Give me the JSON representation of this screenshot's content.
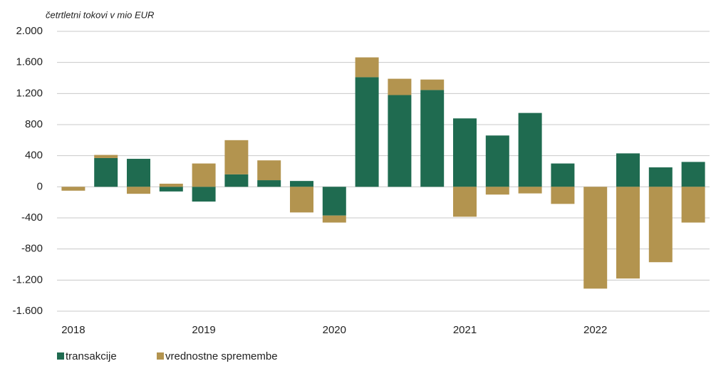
{
  "chart_data": {
    "type": "stacked_bar",
    "subtitle": "četrtletni tokovi v mio EUR",
    "categories": [
      "2018",
      null,
      null,
      null,
      "2019",
      null,
      null,
      null,
      "2020",
      null,
      null,
      null,
      "2021",
      null,
      null,
      null,
      "2022",
      null,
      null,
      null
    ],
    "series": [
      {
        "name": "transakcije",
        "color": "#1f6b50",
        "values": [
          0,
          370,
          360,
          -60,
          -190,
          160,
          85,
          75,
          -370,
          1410,
          1180,
          1245,
          880,
          660,
          950,
          300,
          0,
          430,
          250,
          320
        ]
      },
      {
        "name": "vrednostne spremembe",
        "color": "#b3944f",
        "values": [
          -50,
          40,
          -90,
          40,
          300,
          440,
          255,
          -330,
          -90,
          255,
          210,
          135,
          -385,
          -100,
          -85,
          -220,
          -1310,
          -1180,
          -970,
          -460
        ]
      }
    ],
    "ylim": [
      -1600,
      2000
    ],
    "yticks": [
      {
        "value": -1600,
        "label": "-1.600"
      },
      {
        "value": -1200,
        "label": "-1.200"
      },
      -800,
      -400,
      0,
      400,
      800,
      {
        "value": 1200,
        "label": "1.200"
      },
      {
        "value": 1600,
        "label": "1.600"
      },
      {
        "value": 2000,
        "label": "2.000"
      }
    ],
    "grid": true,
    "legend": "bottom-left"
  }
}
